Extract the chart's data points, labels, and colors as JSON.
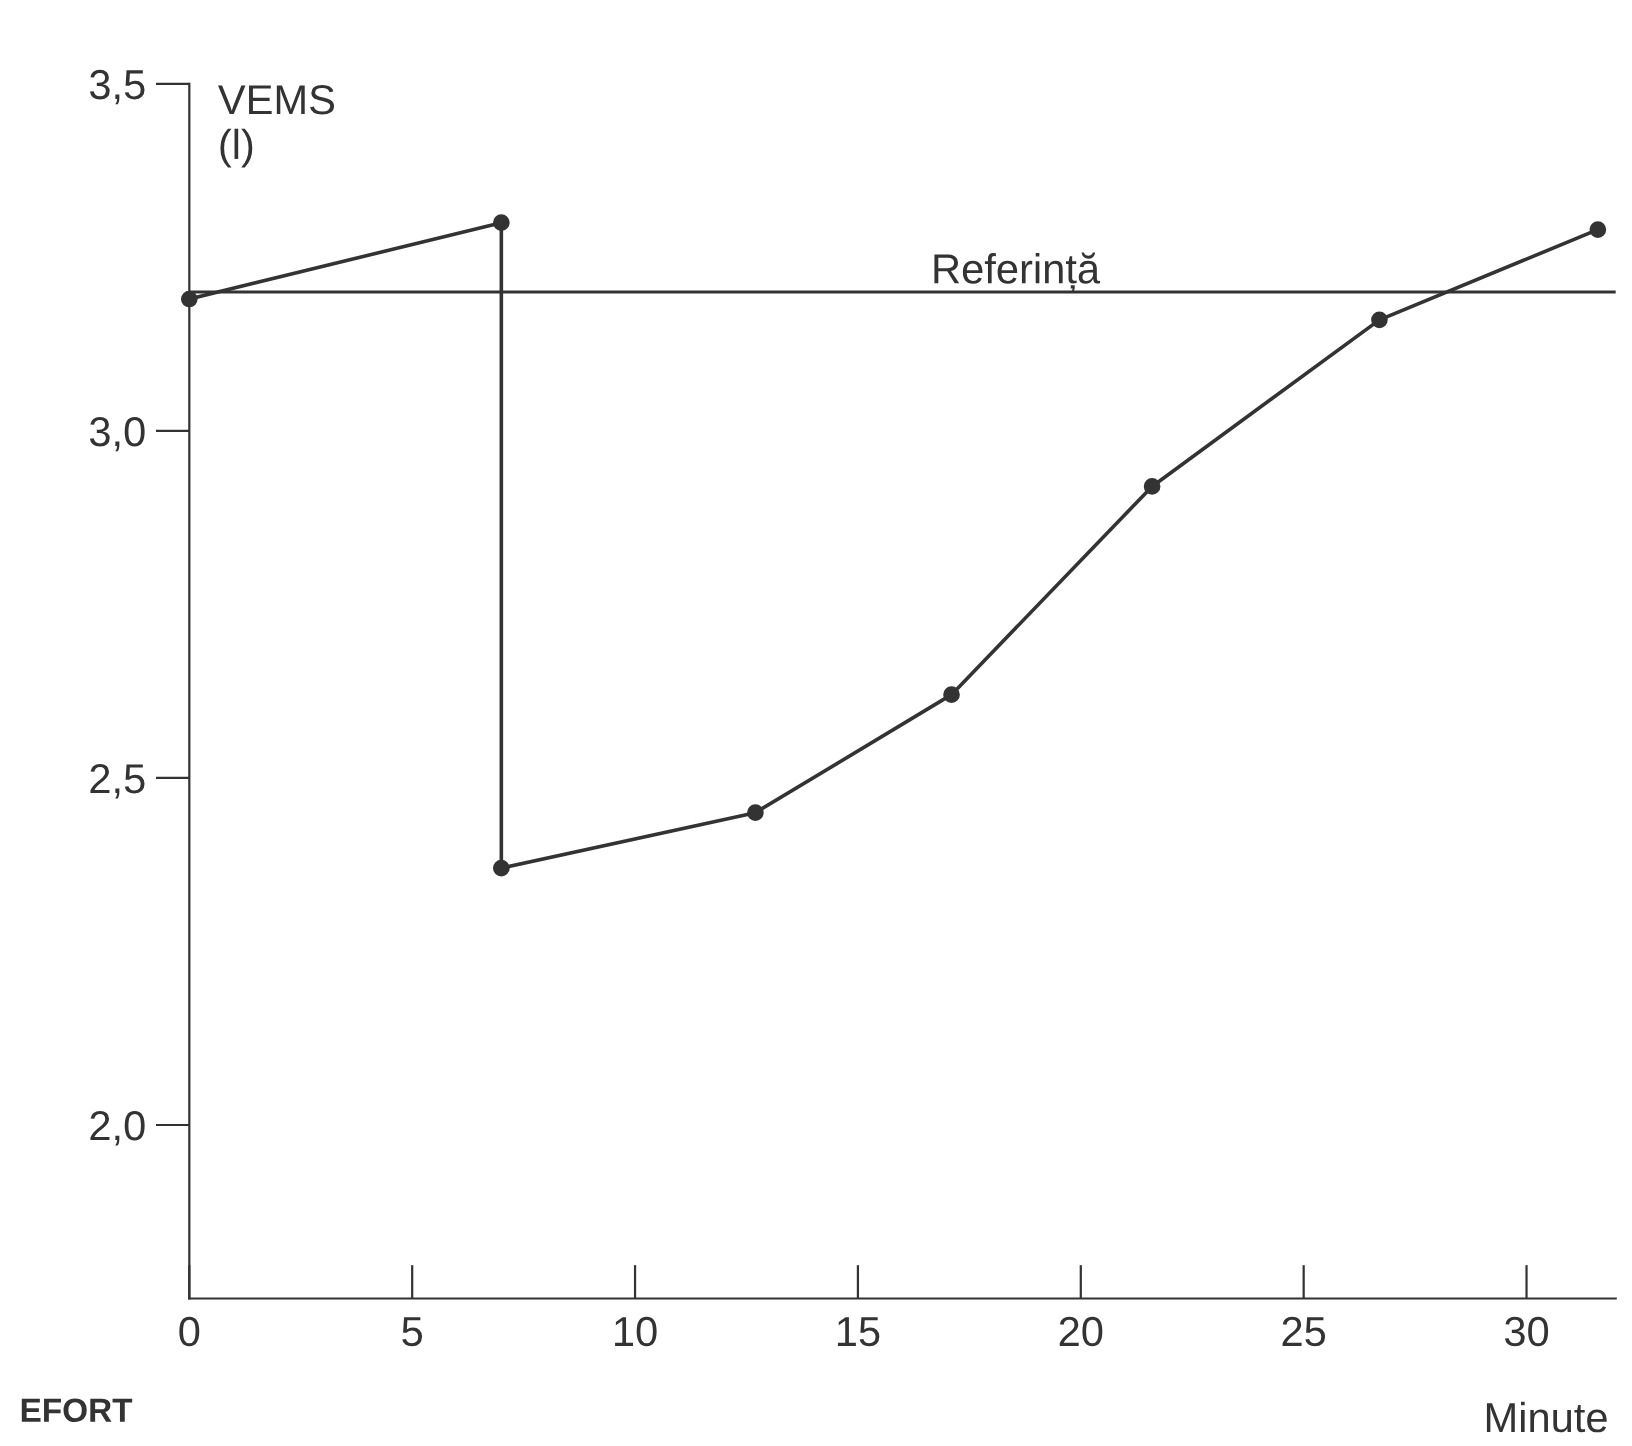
{
  "chart_data": {
    "type": "line",
    "ylabel": "VEMS\n(l)",
    "xlabel": "Minute",
    "x": [
      0,
      7,
      7,
      12.7,
      17.1,
      21.6,
      26.7,
      31.6
    ],
    "series": [
      {
        "color": "#333333",
        "values": [
          3.19,
          3.3,
          2.37,
          2.45,
          2.62,
          2.92,
          3.16,
          3.29
        ]
      }
    ],
    "marker": "circle",
    "line_style": "solid",
    "grid": false,
    "xlim": [
      0,
      32
    ],
    "ylim": [
      1.75,
      3.5
    ],
    "xticks": [
      0,
      5,
      10,
      15,
      20,
      25,
      30
    ],
    "yticks": [
      {
        "value": 2.0,
        "label": "2,0"
      },
      {
        "value": 2.5,
        "label": "2,5"
      },
      {
        "value": 3.0,
        "label": "3,0"
      },
      {
        "value": 3.5,
        "label": "3,5"
      }
    ],
    "ref_lines": [
      {
        "axis": "y",
        "value": 3.2,
        "label": "Referință",
        "color": "#333333"
      }
    ],
    "annotations": [
      "EFORT"
    ]
  }
}
